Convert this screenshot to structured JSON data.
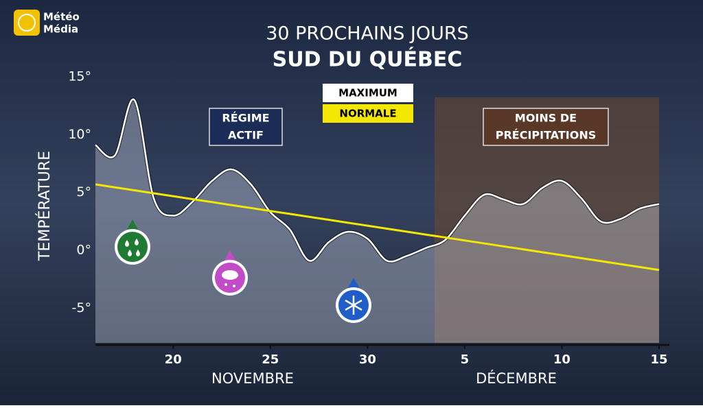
{
  "chart_data": {
    "type": "line",
    "logo": [
      "Météo",
      "Média"
    ],
    "title": "30 PROCHAINS JOURS",
    "subtitle": "SUD DU QUÉBEC",
    "y_label": "TEMPÉRATURE",
    "categories": [
      null,
      null,
      null,
      null,
      "20",
      null,
      null,
      null,
      null,
      "25",
      null,
      null,
      null,
      null,
      "30",
      null,
      null,
      null,
      null,
      "5",
      null,
      null,
      null,
      null,
      "10",
      null,
      null,
      null,
      null,
      "15"
    ],
    "months": [
      "NOVEMBRE",
      "DÉCEMBRE"
    ],
    "ylim": [
      -8,
      15
    ],
    "yticks": [
      {
        "value": -5,
        "label": "-5°"
      },
      {
        "value": 0,
        "label": "0°"
      },
      {
        "value": 5,
        "label": "5°"
      },
      {
        "value": 10,
        "label": "10°"
      },
      {
        "value": 15,
        "label": "15°"
      }
    ],
    "series": [
      {
        "name": "MAXIMUM",
        "color": "#ffffff",
        "values": [
          9.1,
          8.2,
          13.0,
          4.5,
          3.0,
          4.2,
          6.0,
          7.0,
          5.7,
          3.3,
          1.8,
          -0.9,
          0.7,
          1.6,
          1.0,
          -0.9,
          -0.5,
          0.2,
          0.9,
          3.0,
          4.8,
          4.4,
          4.0,
          5.4,
          6.0,
          4.5,
          2.5,
          2.7,
          3.6,
          4.0
        ]
      },
      {
        "name": "NORMALE",
        "color": "#f5e800",
        "values": [
          5.7,
          5.44,
          5.19,
          4.93,
          4.68,
          4.42,
          4.17,
          3.91,
          3.66,
          3.4,
          3.15,
          2.89,
          2.64,
          2.38,
          2.13,
          1.87,
          1.62,
          1.36,
          1.11,
          0.85,
          0.6,
          0.34,
          0.09,
          -0.17,
          -0.42,
          -0.68,
          -0.93,
          -1.19,
          -1.44,
          -1.7
        ]
      }
    ],
    "annotations": [
      [
        "RÉGIME",
        "ACTIF"
      ],
      [
        "MOINS DE",
        "PRÉCIPITATIONS"
      ]
    ]
  }
}
